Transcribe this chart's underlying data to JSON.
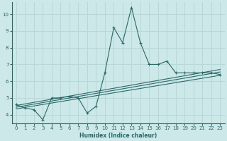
{
  "xlabel": "Humidex (Indice chaleur)",
  "bg_color": "#cce8e8",
  "grid_color": "#b8d8d8",
  "line_color": "#2a6868",
  "xlim": [
    -0.5,
    23.5
  ],
  "ylim": [
    3.5,
    10.7
  ],
  "xticks": [
    0,
    1,
    2,
    3,
    4,
    5,
    6,
    7,
    8,
    9,
    10,
    11,
    12,
    13,
    14,
    15,
    16,
    17,
    18,
    19,
    20,
    21,
    22,
    23
  ],
  "yticks": [
    4,
    5,
    6,
    7,
    8,
    9,
    10
  ],
  "main_x": [
    0,
    1,
    2,
    3,
    4,
    5,
    6,
    7,
    8,
    9,
    10,
    11,
    12,
    13,
    14,
    15,
    16,
    17,
    18,
    19,
    20,
    21,
    22,
    23
  ],
  "main_y": [
    4.6,
    4.4,
    4.3,
    3.7,
    5.0,
    5.0,
    5.1,
    5.0,
    4.1,
    4.5,
    6.5,
    9.2,
    8.3,
    10.4,
    8.3,
    7.0,
    7.0,
    7.2,
    6.5,
    6.5,
    6.5,
    6.5,
    6.5,
    6.4
  ],
  "trend1_x": [
    0,
    23
  ],
  "trend1_y": [
    4.45,
    6.55
  ],
  "trend2_x": [
    0,
    23
  ],
  "trend2_y": [
    4.35,
    6.35
  ],
  "trend3_x": [
    0,
    23
  ],
  "trend3_y": [
    4.55,
    6.7
  ]
}
